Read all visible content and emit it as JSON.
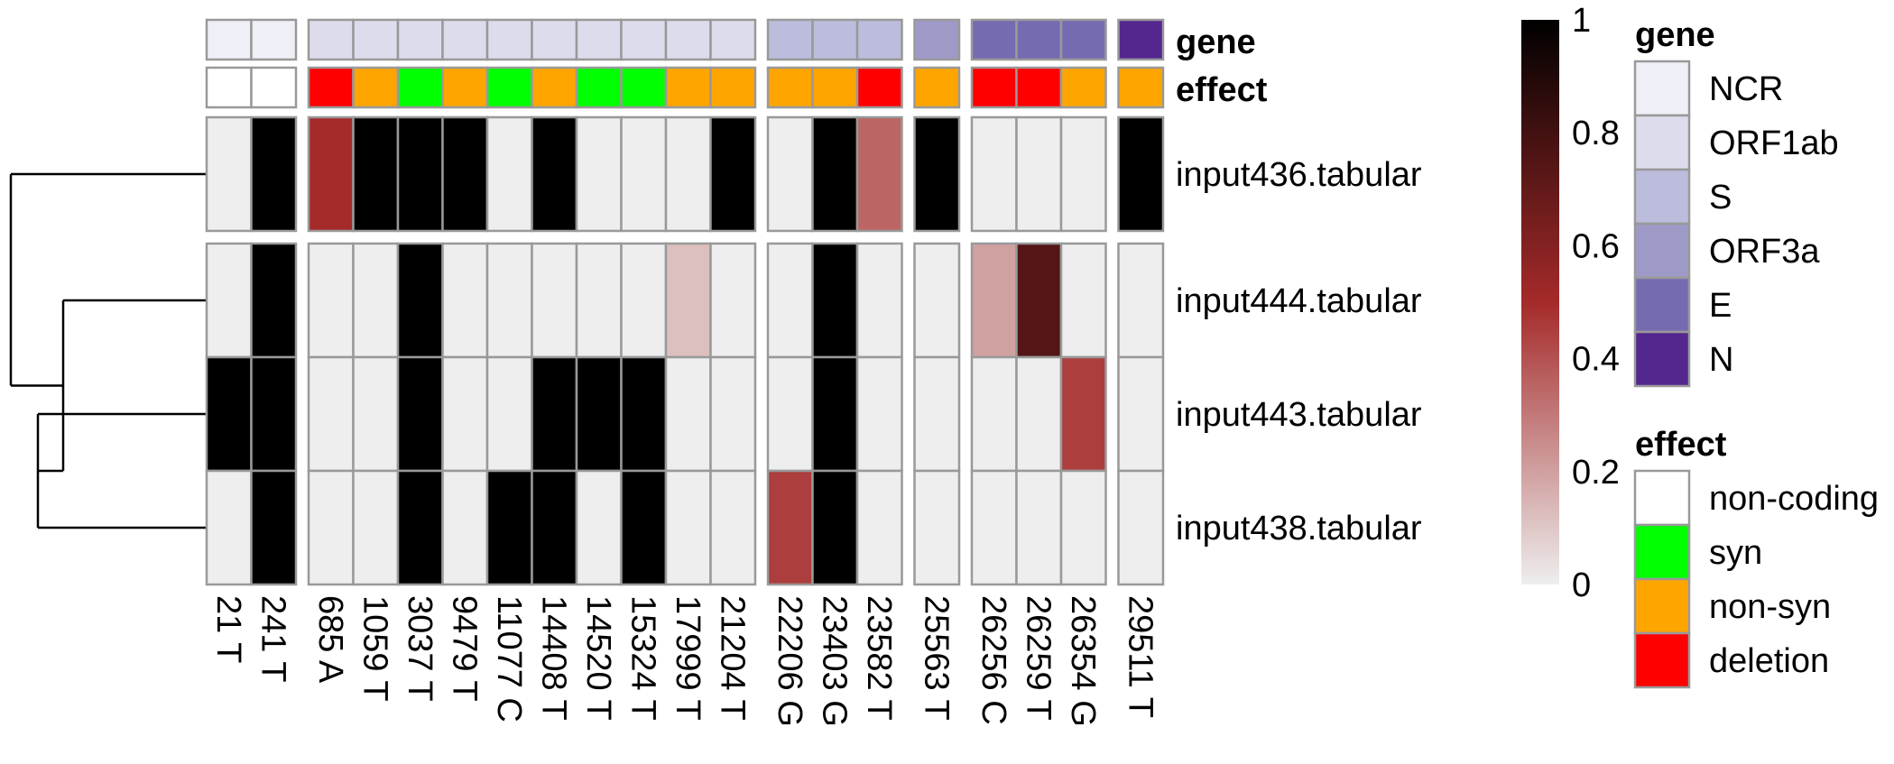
{
  "chart_data": {
    "type": "heatmap",
    "title": "",
    "columns": [
      "21 T",
      "241 T",
      "685 A",
      "1059 T",
      "3037 T",
      "9479 T",
      "11077 C",
      "14408 T",
      "14520 T",
      "15324 T",
      "17999 T",
      "21204 T",
      "22206 G",
      "23403 G",
      "23582 T",
      "25563 T",
      "26256 C",
      "26259 T",
      "26354 G",
      "29511 T"
    ],
    "rows": [
      "input436.tabular",
      "input444.tabular",
      "input443.tabular",
      "input438.tabular"
    ],
    "values": [
      [
        0,
        1,
        0.5,
        1,
        1,
        1,
        0,
        1,
        0,
        0,
        0,
        1,
        0,
        1,
        0.35,
        1,
        0,
        0,
        0,
        1
      ],
      [
        0,
        1,
        0,
        0,
        1,
        0,
        0,
        0,
        0,
        0,
        0.12,
        0,
        0,
        1,
        0,
        0,
        0.2,
        0.75,
        0,
        0
      ],
      [
        1,
        1,
        0,
        0,
        1,
        0,
        0,
        1,
        1,
        1,
        0,
        0,
        0,
        1,
        0,
        0,
        0,
        0,
        0.45,
        0
      ],
      [
        0,
        1,
        0,
        0,
        1,
        0,
        1,
        1,
        0,
        1,
        0,
        0,
        0.45,
        1,
        0,
        0,
        0,
        0,
        0,
        0
      ]
    ],
    "column_annotations": {
      "gene": [
        "NCR",
        "NCR",
        "ORF1ab",
        "ORF1ab",
        "ORF1ab",
        "ORF1ab",
        "ORF1ab",
        "ORF1ab",
        "ORF1ab",
        "ORF1ab",
        "ORF1ab",
        "ORF1ab",
        "S",
        "S",
        "S",
        "ORF3a",
        "E",
        "E",
        "E",
        "N"
      ],
      "effect": [
        "non-coding",
        "non-coding",
        "deletion",
        "non-syn",
        "syn",
        "non-syn",
        "syn",
        "non-syn",
        "syn",
        "syn",
        "non-syn",
        "non-syn",
        "non-syn",
        "non-syn",
        "deletion",
        "non-syn",
        "deletion",
        "deletion",
        "non-syn",
        "non-syn"
      ]
    },
    "annotation_labels": {
      "gene": "gene",
      "effect": "effect"
    },
    "colorbar": {
      "min": 0,
      "max": 1,
      "ticks": [
        "0",
        "0.2",
        "0.4",
        "0.6",
        "0.8",
        "1"
      ],
      "colors": [
        "#eeeeee",
        "#a52a2a",
        "#000000"
      ]
    },
    "legends": [
      {
        "title": "gene",
        "items": [
          {
            "label": "NCR",
            "color": "#efeff7"
          },
          {
            "label": "ORF1ab",
            "color": "#dcdcec"
          },
          {
            "label": "S",
            "color": "#bcbddc"
          },
          {
            "label": "ORF3a",
            "color": "#9e9ac8"
          },
          {
            "label": "E",
            "color": "#756bb1"
          },
          {
            "label": "N",
            "color": "#54278f"
          }
        ]
      },
      {
        "title": "effect",
        "items": [
          {
            "label": "non-coding",
            "color": "#ffffff"
          },
          {
            "label": "syn",
            "color": "#00ff00"
          },
          {
            "label": "non-syn",
            "color": "#ffa500"
          },
          {
            "label": "deletion",
            "color": "#ff0000"
          }
        ]
      }
    ],
    "column_splits": [
      2,
      10,
      3,
      1,
      3,
      1
    ],
    "row_splits": [
      1,
      3
    ],
    "dendrogram": "rows clustered: input436 | (input444, (input443, input438))"
  }
}
